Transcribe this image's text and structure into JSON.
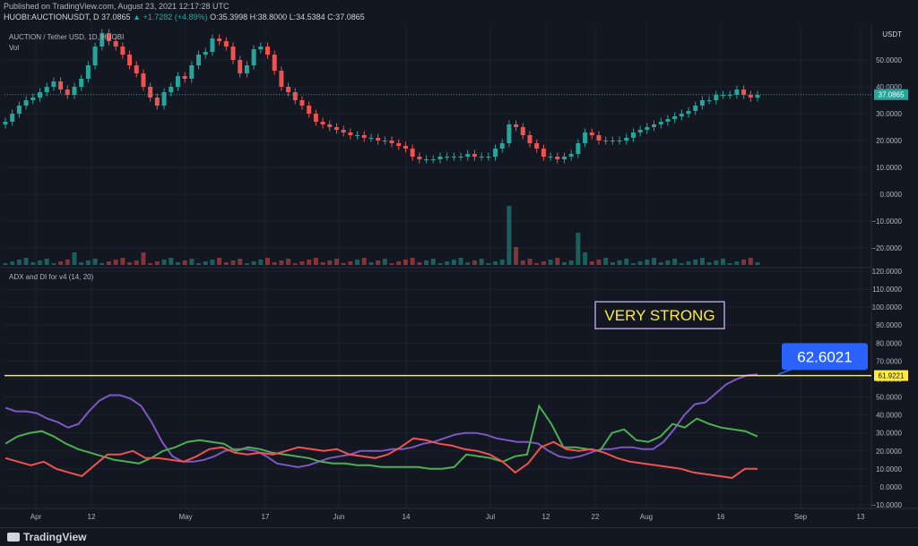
{
  "header": {
    "published": "Published on TradingView.com, August 23, 2021 12:17:28 UTC",
    "symbol": "HUOBI:AUCTIONUSDT, D",
    "last": "37.0865",
    "change": "▲ +1.7282 (+4.89%)",
    "ohlc": "O:35.3998 H:38.8000 L:34.5384 C:37.0865"
  },
  "price_pane": {
    "title": "AUCTION / Tether USD, 1D, HUOBI",
    "vol_label": "Vol",
    "currency": "USDT",
    "last_price_tag": "37.0865"
  },
  "indicator_pane": {
    "title": "ADX and DI for v4 (14, 20)",
    "annotation": "VERY STRONG",
    "callout": "62.6021",
    "level_tag": "61.9221"
  },
  "footer": {
    "brand": "TradingView"
  },
  "colors": {
    "up": "#26a69a",
    "down": "#ef5350",
    "adx": "#7e57c2",
    "di_plus": "#4caf50",
    "di_minus": "#ef5350",
    "level": "#ffeb3b",
    "callout": "#2962ff"
  },
  "chart_data": [
    {
      "type": "candlestick",
      "title": "AUCTION / Tether USD, 1D, HUOBI",
      "y_ticks": [
        50,
        40,
        30,
        20,
        10,
        0,
        -10,
        -20
      ],
      "ylim": [
        -27,
        63
      ],
      "x_ticks": [
        "Apr",
        "12",
        "May",
        "17",
        "Jun",
        "14",
        "Jul",
        "12",
        "22",
        "Aug",
        "16",
        "Sep",
        "13"
      ],
      "last_price": 37.0865,
      "close_series": [
        27,
        30,
        33,
        35,
        36,
        38,
        40,
        42,
        39,
        37,
        40,
        43,
        48,
        55,
        60,
        57,
        55,
        52,
        48,
        45,
        40,
        36,
        33,
        38,
        40,
        44,
        43,
        48,
        52,
        53,
        58,
        57,
        55,
        50,
        45,
        48,
        54,
        55,
        52,
        46,
        40,
        38,
        35,
        33,
        30,
        27,
        26,
        25,
        24,
        23,
        22,
        22,
        21,
        21,
        20,
        20,
        19,
        18,
        17,
        14,
        13,
        13,
        13,
        14,
        14,
        14,
        14,
        15,
        14,
        14,
        14,
        17,
        19,
        26,
        25,
        22,
        19,
        17,
        14,
        14,
        13,
        14,
        15,
        19,
        23,
        22,
        20,
        20,
        20,
        20,
        21,
        23,
        24,
        25,
        26,
        27,
        28,
        29,
        30,
        31,
        33,
        35,
        35,
        37,
        37,
        37,
        39,
        37,
        36,
        37
      ]
    },
    {
      "type": "line",
      "title": "ADX and DI for v4 (14, 20)",
      "y_ticks": [
        120,
        110,
        100,
        90,
        80,
        70,
        60,
        50,
        40,
        30,
        20,
        10,
        0,
        -10
      ],
      "ylim": [
        -12,
        122
      ],
      "level": 61.9221,
      "annotation": "VERY STRONG",
      "callout": 62.6021,
      "series": [
        {
          "color": "#7e57c2",
          "values": [
            44,
            42,
            42,
            41,
            38,
            36,
            33,
            35,
            42,
            48,
            51,
            51,
            49,
            45,
            36,
            25,
            17,
            14,
            14,
            15,
            17,
            20,
            21,
            21,
            20,
            17,
            13,
            12,
            11,
            12,
            14,
            16,
            17,
            18,
            20,
            20,
            20,
            21,
            21,
            22,
            24,
            25,
            27,
            29,
            30,
            30,
            29,
            27,
            26,
            25,
            25,
            24,
            20,
            17,
            16,
            17,
            19,
            21,
            21,
            22,
            22,
            21,
            21,
            25,
            32,
            40,
            46,
            47,
            52,
            57,
            60,
            62,
            62.6
          ]
        },
        {
          "color": "#4caf50",
          "values": [
            24,
            28,
            30,
            31,
            28,
            24,
            21,
            19,
            17,
            15,
            14,
            13,
            16,
            20,
            22,
            25,
            26,
            25,
            24,
            20,
            22,
            21,
            19,
            18,
            17,
            16,
            14,
            13,
            13,
            12,
            12,
            11,
            11,
            11,
            11,
            10,
            10,
            11,
            18,
            17,
            16,
            14,
            17,
            18,
            45,
            35,
            22,
            22,
            21,
            20,
            30,
            32,
            26,
            25,
            28,
            35,
            33,
            38,
            35,
            33,
            32,
            31,
            28
          ]
        },
        {
          "color": "#ef5350",
          "values": [
            16,
            14,
            12,
            14,
            10,
            8,
            6,
            12,
            18,
            18,
            20,
            16,
            16,
            15,
            14,
            17,
            21,
            22,
            19,
            18,
            19,
            18,
            20,
            22,
            21,
            20,
            21,
            18,
            17,
            16,
            18,
            22,
            27,
            26,
            24,
            23,
            21,
            20,
            18,
            14,
            8,
            13,
            22,
            25,
            21,
            20,
            21,
            19,
            16,
            14,
            13,
            12,
            11,
            10,
            8,
            7,
            6,
            5,
            10,
            10
          ]
        }
      ]
    }
  ]
}
